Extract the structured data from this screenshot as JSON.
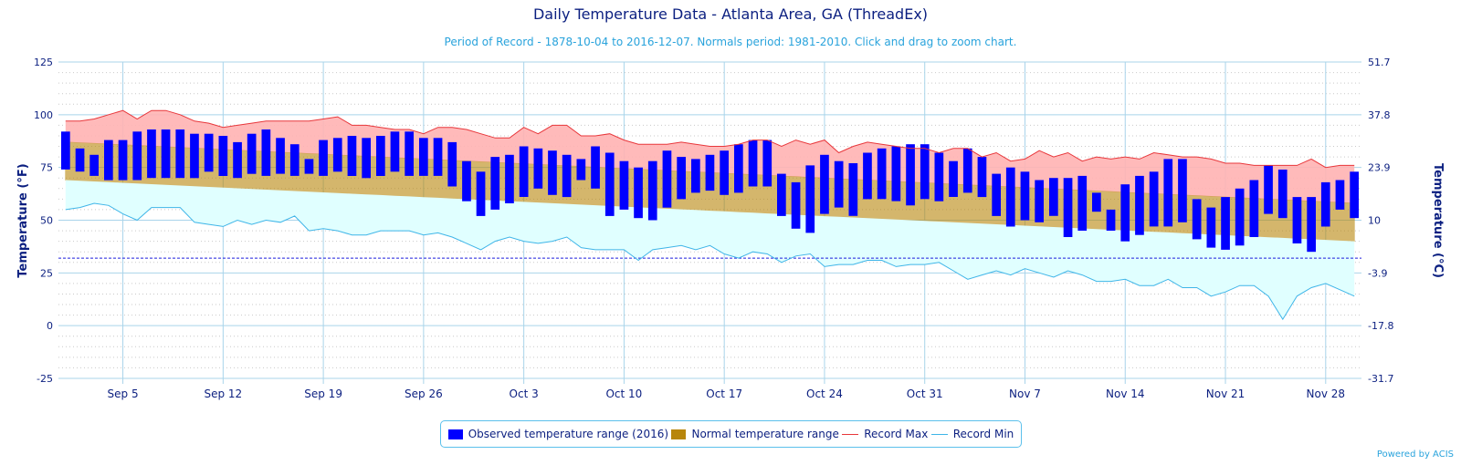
{
  "chart_data": {
    "type": "bar",
    "title": "Daily Temperature Data - Atlanta Area, GA (ThreadEx)",
    "subtitle": "Period of Record - 1878-10-04 to 2016-12-07. Normals period: 1981-2010. Click and drag to zoom chart.",
    "ylabel_left": "Temperature (°F)",
    "ylabel_right": "Temperature (°C)",
    "ylim": [
      -25,
      125
    ],
    "y_ticks_left": [
      "-25",
      "0",
      "25",
      "50",
      "75",
      "100",
      "125"
    ],
    "y_ticks_right": [
      "-31.7",
      "-17.8",
      "-3.9",
      "10",
      "23.9",
      "37.8",
      "51.7"
    ],
    "x_ticks": [
      {
        "label": "Sep 5",
        "day": 4
      },
      {
        "label": "Sep 12",
        "day": 11
      },
      {
        "label": "Sep 19",
        "day": 18
      },
      {
        "label": "Sep 26",
        "day": 25
      },
      {
        "label": "Oct 3",
        "day": 32
      },
      {
        "label": "Oct 10",
        "day": 39
      },
      {
        "label": "Oct 17",
        "day": 46
      },
      {
        "label": "Oct 24",
        "day": 53
      },
      {
        "label": "Oct 31",
        "day": 60
      },
      {
        "label": "Nov 7",
        "day": 67
      },
      {
        "label": "Nov 14",
        "day": 74
      },
      {
        "label": "Nov 21",
        "day": 81
      },
      {
        "label": "Nov 28",
        "day": 88
      }
    ],
    "start_date": "Sep 1",
    "freezing_line": 32,
    "normal_high_range": [
      87,
      58
    ],
    "normal_low_range": [
      69,
      40
    ],
    "observed_high": [
      92,
      84,
      81,
      88,
      88,
      92,
      93,
      93,
      93,
      91,
      91,
      90,
      87,
      91,
      93,
      89,
      86,
      79,
      88,
      89,
      90,
      89,
      90,
      92,
      92,
      89,
      89,
      87,
      78,
      73,
      80,
      81,
      85,
      84,
      83,
      81,
      79,
      85,
      82,
      78,
      75,
      78,
      83,
      80,
      79,
      81,
      83,
      86,
      88,
      88,
      72,
      68,
      76,
      81,
      78,
      77,
      82,
      84,
      85,
      86,
      86,
      82,
      78,
      84,
      80,
      72,
      75,
      73,
      69,
      70,
      70,
      71,
      63,
      55,
      67,
      71,
      73,
      79,
      79,
      60,
      56,
      61,
      65,
      69,
      76,
      74,
      61,
      61,
      68,
      69,
      73
    ],
    "observed_low": [
      74,
      73,
      71,
      69,
      69,
      69,
      70,
      70,
      70,
      70,
      73,
      71,
      70,
      72,
      71,
      72,
      71,
      72,
      71,
      73,
      71,
      70,
      71,
      73,
      71,
      71,
      71,
      66,
      59,
      52,
      55,
      58,
      61,
      65,
      62,
      61,
      69,
      65,
      52,
      55,
      51,
      50,
      56,
      60,
      63,
      64,
      62,
      63,
      66,
      66,
      52,
      46,
      44,
      53,
      56,
      52,
      60,
      60,
      59,
      57,
      60,
      59,
      61,
      63,
      61,
      52,
      47,
      50,
      49,
      52,
      42,
      45,
      54,
      45,
      40,
      43,
      47,
      47,
      49,
      41,
      37,
      36,
      38,
      42,
      53,
      51,
      39,
      35,
      47,
      55,
      51
    ],
    "record_max": [
      97,
      97,
      98,
      100,
      102,
      98,
      102,
      102,
      100,
      97,
      96,
      94,
      95,
      96,
      97,
      97,
      97,
      97,
      98,
      99,
      95,
      95,
      94,
      93,
      93,
      91,
      94,
      94,
      93,
      91,
      89,
      89,
      94,
      91,
      95,
      95,
      90,
      90,
      91,
      88,
      86,
      86,
      86,
      87,
      86,
      85,
      85,
      86,
      88,
      88,
      85,
      88,
      86,
      88,
      82,
      85,
      87,
      86,
      85,
      84,
      84,
      82,
      84,
      84,
      80,
      82,
      78,
      79,
      83,
      80,
      82,
      78,
      80,
      79,
      80,
      79,
      82,
      81,
      80,
      80,
      79,
      77,
      77,
      76,
      76,
      76,
      76,
      79,
      75,
      76,
      76
    ],
    "record_min": [
      55,
      56,
      58,
      57,
      53,
      50,
      56,
      56,
      56,
      49,
      48,
      47,
      50,
      48,
      50,
      49,
      52,
      45,
      46,
      45,
      43,
      43,
      45,
      45,
      45,
      43,
      44,
      42,
      39,
      36,
      40,
      42,
      40,
      39,
      40,
      42,
      37,
      36,
      36,
      36,
      31,
      36,
      37,
      38,
      36,
      38,
      34,
      32,
      35,
      34,
      30,
      33,
      34,
      28,
      29,
      29,
      31,
      31,
      28,
      29,
      29,
      30,
      26,
      22,
      24,
      26,
      24,
      27,
      25,
      23,
      26,
      24,
      21,
      21,
      22,
      19,
      19,
      22,
      18,
      18,
      14,
      16,
      19,
      19,
      14,
      3,
      14,
      18,
      20,
      17,
      14
    ],
    "colors": {
      "observed": "#0000ff",
      "normal": "#b8860b",
      "record_max_fill": "#ffb3b3",
      "record_max_line": "#e8373b",
      "record_min_fill": "#e0ffff",
      "record_min_line": "#3eb5e8",
      "freezing": "#1d1ddd",
      "grid": "#a9d4ea",
      "axis_text": "#0b1f80"
    },
    "legend": [
      {
        "key": "observed",
        "label": "Observed temperature range (2016)"
      },
      {
        "key": "normal",
        "label": "Normal temperature range"
      },
      {
        "key": "record_max",
        "label": "Record Max"
      },
      {
        "key": "record_min",
        "label": "Record Min"
      }
    ],
    "credits": "Powered by ACIS"
  }
}
